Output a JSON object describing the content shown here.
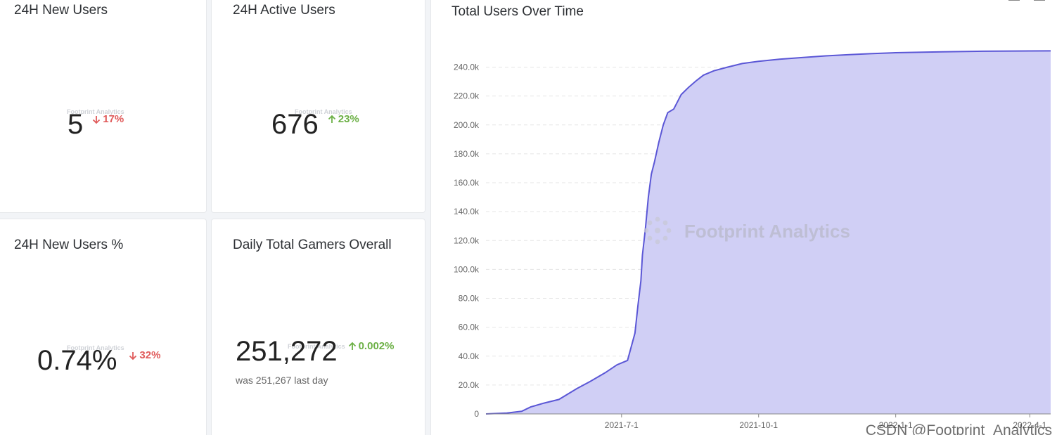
{
  "cards": [
    {
      "title": "24H New Users",
      "value": "5",
      "change": "17%",
      "direction": "down"
    },
    {
      "title": "24H Active Users",
      "value": "676",
      "change": "23%",
      "direction": "up"
    },
    {
      "title": "24H New Users %",
      "value": "0.74%",
      "change": "32%",
      "direction": "down"
    },
    {
      "title": "Daily Total Gamers Overall",
      "value": "251,272",
      "change": "0.002%",
      "direction": "up",
      "sub": "was 251,267 last day"
    }
  ],
  "watermark_small": "Footprint Analytics",
  "watermark_large": "Footprint Analytics",
  "csdn_watermark": "CSDN @Footprint_Analytics",
  "colors": {
    "down": "#e05a5a",
    "up": "#6cb046",
    "line": "#5b57d6",
    "area": "#d0cff5"
  },
  "chart": {
    "title": "Total Users Over Time"
  },
  "chart_data": {
    "type": "area",
    "title": "Total Users Over Time",
    "xlabel": "",
    "ylabel": "",
    "y_ticks": [
      "0",
      "20.0k",
      "40.0k",
      "60.0k",
      "80.0k",
      "100.0k",
      "120.0k",
      "140.0k",
      "160.0k",
      "180.0k",
      "200.0k",
      "220.0k",
      "240.0k"
    ],
    "x_ticks": [
      "2021-7-1",
      "2021-10-1",
      "2022-1-1",
      "2022-4-1"
    ],
    "ylim": [
      0,
      250000
    ],
    "grid": "horizontal dashed",
    "legend": "none",
    "series": [
      {
        "x": [
          "2021-4-1",
          "2021-4-15",
          "2021-4-25",
          "2021-5-1",
          "2021-5-10",
          "2021-5-20",
          "2021-6-1",
          "2021-6-10",
          "2021-6-20",
          "2021-6-28",
          "2021-7-5",
          "2021-7-10",
          "2021-7-12",
          "2021-7-14",
          "2021-7-15",
          "2021-7-17",
          "2021-7-19",
          "2021-7-21",
          "2021-7-23",
          "2021-7-26",
          "2021-7-29",
          "2021-8-1",
          "2021-8-5",
          "2021-8-10",
          "2021-8-15",
          "2021-8-20",
          "2021-8-25",
          "2021-9-1",
          "2021-9-10",
          "2021-9-20",
          "2021-10-1",
          "2021-10-15",
          "2021-11-1",
          "2021-11-15",
          "2021-12-1",
          "2021-12-15",
          "2022-1-1",
          "2022-2-1",
          "2022-3-1",
          "2022-4-1",
          "2022-4-15"
        ],
        "values": [
          0,
          600,
          1800,
          4800,
          7500,
          10000,
          17500,
          22500,
          28500,
          34000,
          37000,
          56000,
          75000,
          92000,
          110000,
          128000,
          150000,
          166000,
          174000,
          188000,
          200000,
          208500,
          211000,
          221000,
          226000,
          230500,
          234500,
          237500,
          240000,
          242500,
          244000,
          245500,
          246800,
          247800,
          248700,
          249300,
          250000,
          250600,
          251000,
          251200,
          251272
        ]
      }
    ]
  }
}
